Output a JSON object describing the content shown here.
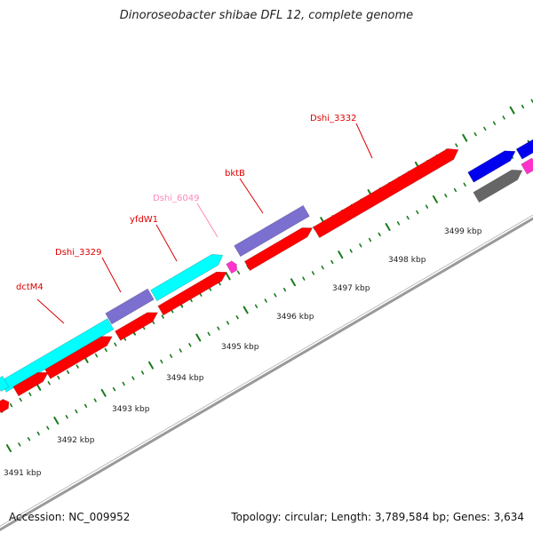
{
  "title": "Dinoroseobacter shibae DFL 12, complete genome",
  "footer": {
    "accession": "Accession: NC_009952",
    "info": "Topology: circular; Length: 3,789,584 bp; Genes: 3,634"
  },
  "colors": {
    "axis": "#999999",
    "tick": "#1a7a1a",
    "forward_cds": "#ff0000",
    "cyan_gene": "#00ffff",
    "purple_gene": "#7b6fd0",
    "blue_gene": "#0000ee",
    "gray_gene": "#666666",
    "magenta_gene": "#ff33cc",
    "label_red": "#dd0000",
    "label_pink": "#ff88bb"
  },
  "scale_labels": [
    "3491 kbp",
    "3492 kbp",
    "3493 kbp",
    "3494 kbp",
    "3495 kbp",
    "3496 kbp",
    "3497 kbp",
    "3498 kbp",
    "3499 kbp"
  ],
  "gene_labels": [
    {
      "name": "dctM4",
      "color": "label_red"
    },
    {
      "name": "Dshi_3329",
      "color": "label_red"
    },
    {
      "name": "yfdW1",
      "color": "label_red"
    },
    {
      "name": "Dshi_6049",
      "color": "label_pink"
    },
    {
      "name": "bktB",
      "color": "label_red"
    },
    {
      "name": "Dshi_3332",
      "color": "label_red"
    }
  ]
}
